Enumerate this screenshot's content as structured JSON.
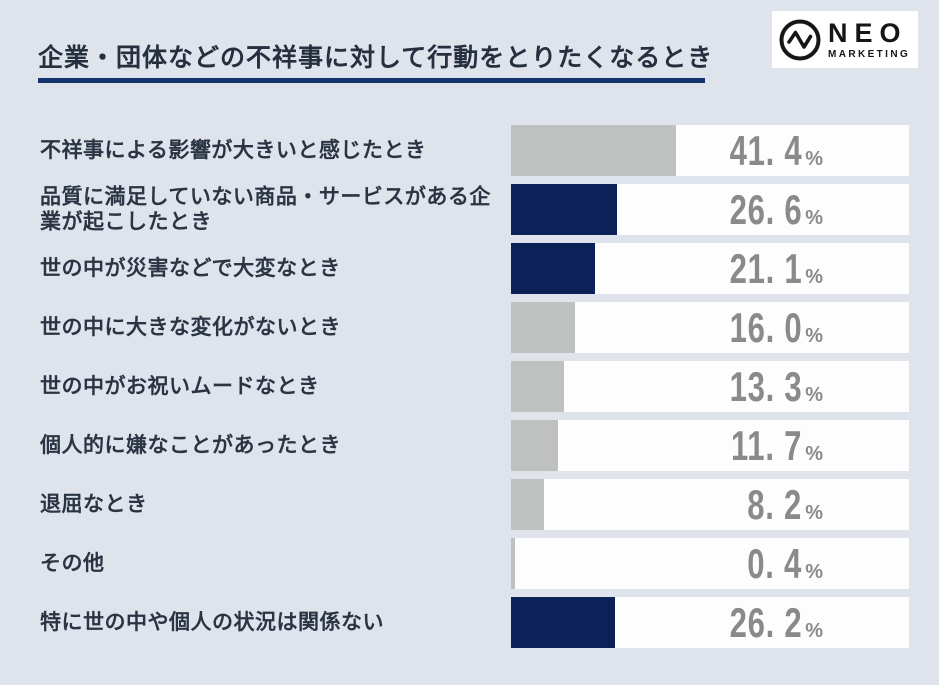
{
  "page": {
    "background": "#dee3ec"
  },
  "header": {
    "title": "企業・団体などの不祥事に対して行動をとりたくなるとき",
    "underline_color": "#14326b",
    "logo": {
      "name": "NEO",
      "sub": "MARKETING",
      "mark": "pulse-circle-icon",
      "color": "#161616",
      "background": "#ffffff"
    }
  },
  "chart_data": {
    "type": "bar",
    "orientation": "horizontal",
    "title": "企業・団体などの不祥事に対して行動をとりたくなるとき",
    "unit": "%",
    "xlim": [
      0,
      100
    ],
    "grid": false,
    "legend": false,
    "categories": [
      "不祥事による影響が大きいと感じたとき",
      "品質に満足していない商品・サービスがある企業が起こしたとき",
      "世の中が災害などで大変なとき",
      "世の中に大きな変化がないとき",
      "世の中がお祝いムードなとき",
      "個人的に嫌なことがあったとき",
      "退屈なとき",
      "その他",
      "特に世の中や個人の状況は関係ない"
    ],
    "values": [
      41.4,
      26.6,
      21.1,
      16.0,
      13.3,
      11.7,
      8.2,
      0.4,
      26.2
    ],
    "value_labels": [
      "41. 4",
      "26. 6",
      "21. 1",
      "16. 0",
      "13. 3",
      "11. 7",
      "8. 2",
      "0. 4",
      "26. 2"
    ],
    "bar_colors": [
      "gray",
      "navy",
      "navy",
      "gray",
      "gray",
      "gray",
      "gray",
      "gray",
      "navy"
    ],
    "colors": {
      "gray": "#bec1bf",
      "navy": "#0b2158",
      "track": "#fdfdfd",
      "value_text": "#8a8a8a",
      "label_text": "#2b3442"
    }
  }
}
